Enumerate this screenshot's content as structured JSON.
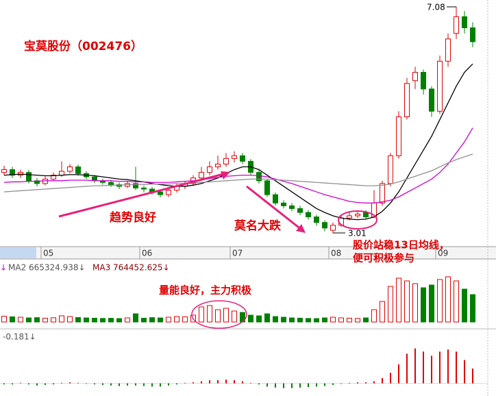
{
  "chart_data": {
    "type": "candlestick",
    "title": "宝莫股份（002476）",
    "annotations": {
      "trend": "趋势良好",
      "drop": "莫名大跌",
      "advice_1": "股价站稳13日均线，",
      "advice_2": "便可积极参与",
      "volume": "量能良好，主力积极"
    },
    "high_label": "7.08",
    "low_label": "3.01",
    "categories": [
      null,
      null,
      null,
      null,
      null,
      "05",
      null,
      null,
      null,
      null,
      null,
      null,
      null,
      null,
      null,
      null,
      null,
      "06",
      null,
      null,
      null,
      null,
      null,
      null,
      null,
      null,
      null,
      null,
      "07",
      null,
      null,
      null,
      null,
      null,
      null,
      null,
      null,
      null,
      null,
      null,
      "08",
      null,
      null,
      null,
      null,
      null,
      null,
      null,
      null,
      null,
      null,
      null,
      null,
      "09",
      null,
      null,
      null,
      null
    ],
    "ylim": [
      2.79,
      7.2
    ],
    "up_color": "#e00000",
    "down_color": "#008000",
    "open": [
      4.1,
      4.15,
      4.05,
      4.1,
      3.95,
      3.9,
      3.98,
      4.05,
      4.12,
      4.2,
      4.08,
      4.02,
      3.95,
      3.92,
      3.88,
      3.85,
      3.9,
      3.82,
      3.8,
      3.75,
      3.7,
      3.78,
      3.85,
      3.9,
      4.0,
      4.1,
      4.2,
      4.25,
      4.35,
      4.4,
      4.3,
      4.1,
      3.95,
      3.7,
      3.55,
      3.5,
      3.45,
      3.38,
      3.3,
      3.2,
      3.06,
      3.15,
      3.28,
      3.32,
      3.38,
      3.3,
      3.55,
      3.9,
      4.4,
      5.1,
      5.75,
      5.9,
      5.6,
      5.2,
      6.1,
      6.6,
      6.9,
      6.7
    ],
    "high": [
      4.22,
      4.2,
      4.15,
      4.14,
      4.0,
      4.03,
      4.1,
      4.3,
      4.25,
      4.24,
      4.12,
      4.05,
      3.99,
      3.96,
      3.92,
      3.95,
      4.2,
      3.86,
      3.84,
      3.79,
      3.82,
      3.9,
      3.95,
      4.05,
      4.2,
      4.3,
      4.4,
      4.45,
      4.48,
      4.45,
      4.34,
      4.14,
      3.98,
      3.74,
      3.6,
      3.55,
      3.5,
      3.42,
      3.34,
      3.24,
      3.2,
      3.32,
      3.38,
      3.4,
      3.42,
      3.78,
      3.95,
      4.45,
      5.2,
      5.8,
      6.0,
      5.95,
      5.65,
      6.2,
      6.6,
      7.08,
      7.0,
      6.8
    ],
    "low": [
      4.05,
      4.0,
      4.0,
      3.9,
      3.85,
      3.87,
      3.95,
      4.02,
      4.08,
      4.04,
      3.98,
      3.91,
      3.88,
      3.84,
      3.8,
      3.82,
      3.78,
      3.74,
      3.7,
      3.65,
      3.66,
      3.74,
      3.8,
      3.86,
      3.96,
      4.05,
      4.15,
      4.2,
      4.28,
      4.25,
      4.05,
      3.9,
      3.66,
      3.5,
      3.45,
      3.4,
      3.33,
      3.25,
      3.14,
      3.04,
      3.01,
      3.12,
      3.24,
      3.28,
      3.26,
      3.28,
      3.5,
      3.85,
      4.35,
      5.05,
      5.6,
      5.5,
      5.1,
      5.15,
      6.0,
      6.5,
      6.6,
      6.35
    ],
    "close": [
      4.15,
      4.05,
      4.1,
      3.95,
      3.9,
      3.98,
      4.05,
      4.12,
      4.2,
      4.08,
      4.02,
      3.95,
      3.92,
      3.88,
      3.85,
      3.9,
      3.82,
      3.8,
      3.75,
      3.7,
      3.78,
      3.85,
      3.9,
      4.0,
      4.1,
      4.2,
      4.25,
      4.35,
      4.4,
      4.3,
      4.1,
      3.95,
      3.7,
      3.55,
      3.5,
      3.45,
      3.38,
      3.3,
      3.2,
      3.1,
      3.15,
      3.28,
      3.32,
      3.35,
      3.3,
      3.55,
      3.9,
      4.4,
      5.1,
      5.7,
      5.9,
      5.6,
      5.2,
      6.1,
      6.5,
      6.9,
      6.7,
      6.45
    ],
    "moving_averages": [
      {
        "color": "#000000",
        "values": [
          4.05,
          4.06,
          4.07,
          4.06,
          4.05,
          4.04,
          4.04,
          4.05,
          4.06,
          4.06,
          4.05,
          4.04,
          4.02,
          4.0,
          3.98,
          3.97,
          3.95,
          3.93,
          3.9,
          3.88,
          3.86,
          3.85,
          3.85,
          3.87,
          3.9,
          3.95,
          4.0,
          4.08,
          4.15,
          4.2,
          4.2,
          4.15,
          4.05,
          3.95,
          3.85,
          3.75,
          3.65,
          3.55,
          3.45,
          3.38,
          3.32,
          3.28,
          3.26,
          3.25,
          3.26,
          3.3,
          3.4,
          3.55,
          3.75,
          4.0,
          4.25,
          4.5,
          4.75,
          5.05,
          5.35,
          5.65,
          5.9,
          6.05
        ]
      },
      {
        "color": "#d000d0",
        "values": [
          3.92,
          3.93,
          3.93,
          3.94,
          3.94,
          3.95,
          3.95,
          3.95,
          3.96,
          3.96,
          3.96,
          3.95,
          3.95,
          3.95,
          3.94,
          3.94,
          3.93,
          3.93,
          3.92,
          3.92,
          3.92,
          3.93,
          3.94,
          3.95,
          3.97,
          3.99,
          4.01,
          4.03,
          4.04,
          4.05,
          4.05,
          4.04,
          4.02,
          3.98,
          3.94,
          3.9,
          3.85,
          3.8,
          3.75,
          3.7,
          3.66,
          3.62,
          3.58,
          3.56,
          3.55,
          3.55,
          3.57,
          3.6,
          3.66,
          3.74,
          3.82,
          3.9,
          3.98,
          4.1,
          4.25,
          4.45,
          4.65,
          4.9
        ]
      },
      {
        "color": "#909090",
        "values": [
          3.75,
          3.76,
          3.77,
          3.78,
          3.79,
          3.8,
          3.81,
          3.82,
          3.83,
          3.84,
          3.85,
          3.86,
          3.86,
          3.87,
          3.87,
          3.88,
          3.88,
          3.88,
          3.89,
          3.89,
          3.89,
          3.9,
          3.9,
          3.91,
          3.92,
          3.93,
          3.94,
          3.95,
          3.96,
          3.97,
          3.98,
          3.98,
          3.98,
          3.97,
          3.96,
          3.95,
          3.94,
          3.93,
          3.92,
          3.91,
          3.9,
          3.89,
          3.88,
          3.87,
          3.86,
          3.86,
          3.87,
          3.89,
          3.93,
          3.98,
          4.03,
          4.08,
          4.13,
          4.2,
          4.27,
          4.33,
          4.38,
          4.43
        ]
      }
    ],
    "volume": {
      "ylim": [
        0,
        3500000
      ],
      "ma2_label": "MA2 665324.938↓",
      "ma3_label": "MA3 764452.625↓",
      "arrow": "↓",
      "values": [
        420000,
        380000,
        350000,
        300000,
        320000,
        280000,
        310000,
        450000,
        400000,
        330000,
        300000,
        280000,
        260000,
        270000,
        250000,
        300000,
        600000,
        280000,
        320000,
        300000,
        350000,
        400000,
        380000,
        500000,
        1100000,
        1200000,
        900000,
        1000000,
        800000,
        700000,
        500000,
        450000,
        600000,
        400000,
        350000,
        300000,
        280000,
        260000,
        250000,
        300000,
        350000,
        300000,
        280000,
        260000,
        300000,
        900000,
        1500000,
        2600000,
        3200000,
        3000000,
        2800000,
        2500000,
        2700000,
        3100000,
        3300000,
        3000000,
        2400000,
        2000000
      ]
    },
    "macd": {
      "ylim": [
        -0.1,
        0.45
      ],
      "label": "-0.181↓",
      "values": [
        -0.01,
        -0.01,
        0.005,
        -0.01,
        -0.02,
        -0.015,
        -0.01,
        0.005,
        0.01,
        0.005,
        -0.005,
        -0.01,
        -0.015,
        -0.02,
        -0.025,
        -0.02,
        -0.02,
        -0.025,
        -0.03,
        -0.03,
        -0.02,
        -0.01,
        0.005,
        0.01,
        0.02,
        0.03,
        0.03,
        0.035,
        0.03,
        0.02,
        0.005,
        -0.01,
        -0.03,
        -0.04,
        -0.045,
        -0.045,
        -0.04,
        -0.035,
        -0.03,
        -0.025,
        -0.015,
        -0.005,
        0.005,
        0.01,
        0.01,
        0.02,
        0.05,
        0.1,
        0.18,
        0.28,
        0.33,
        0.3,
        0.26,
        0.3,
        0.32,
        0.3,
        0.22,
        0.14
      ]
    }
  }
}
